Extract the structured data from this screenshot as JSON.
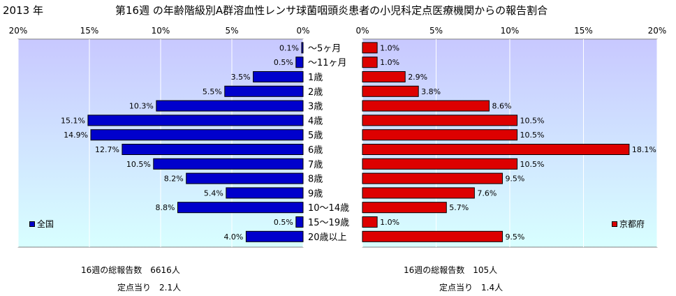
{
  "year_label": "2013 年",
  "title": "第16週 の年齢階級別A群溶血性レンサ球菌咽頭炎患者の小児科定点医療機関からの報告割合",
  "chart_data": {
    "type": "bar",
    "orientation": "horizontal-mirrored",
    "categories": [
      "～5ヶ月",
      "～11ヶ月",
      "1歳",
      "2歳",
      "3歳",
      "4歳",
      "5歳",
      "6歳",
      "7歳",
      "8歳",
      "9歳",
      "10～14歳",
      "15～19歳",
      "20歳以上"
    ],
    "xlim": [
      0,
      20
    ],
    "tick_labels": [
      "0%",
      "5%",
      "10%",
      "15%",
      "20%"
    ],
    "series": [
      {
        "name": "全国",
        "color": "#0000cc",
        "values": [
          0.1,
          0.5,
          3.5,
          5.5,
          10.3,
          15.1,
          14.9,
          12.7,
          10.5,
          8.2,
          5.4,
          8.8,
          0.5,
          4.0
        ],
        "labels": [
          "0.1%",
          "0.5%",
          "3.5%",
          "5.5%",
          "10.3%",
          "15.1%",
          "14.9%",
          "12.7%",
          "10.5%",
          "8.2%",
          "5.4%",
          "8.8%",
          "0.5%",
          "4.0%"
        ]
      },
      {
        "name": "京都府",
        "color": "#dd0000",
        "values": [
          1.0,
          1.0,
          2.9,
          3.8,
          8.6,
          10.5,
          10.5,
          18.1,
          10.5,
          9.5,
          7.6,
          5.7,
          1.0,
          9.5
        ],
        "labels": [
          "1.0%",
          "1.0%",
          "2.9%",
          "3.8%",
          "8.6%",
          "10.5%",
          "10.5%",
          "18.1%",
          "10.5%",
          "9.5%",
          "7.6%",
          "5.7%",
          "1.0%",
          "9.5%"
        ]
      }
    ]
  },
  "footer": {
    "left": {
      "total_label": "16週の総報告数",
      "total_value": "6616人",
      "per_label": "定点当り",
      "per_value": "2.1人"
    },
    "right": {
      "total_label": "16週の総報告数",
      "total_value": "105人",
      "per_label": "定点当り",
      "per_value": "1.4人"
    }
  }
}
